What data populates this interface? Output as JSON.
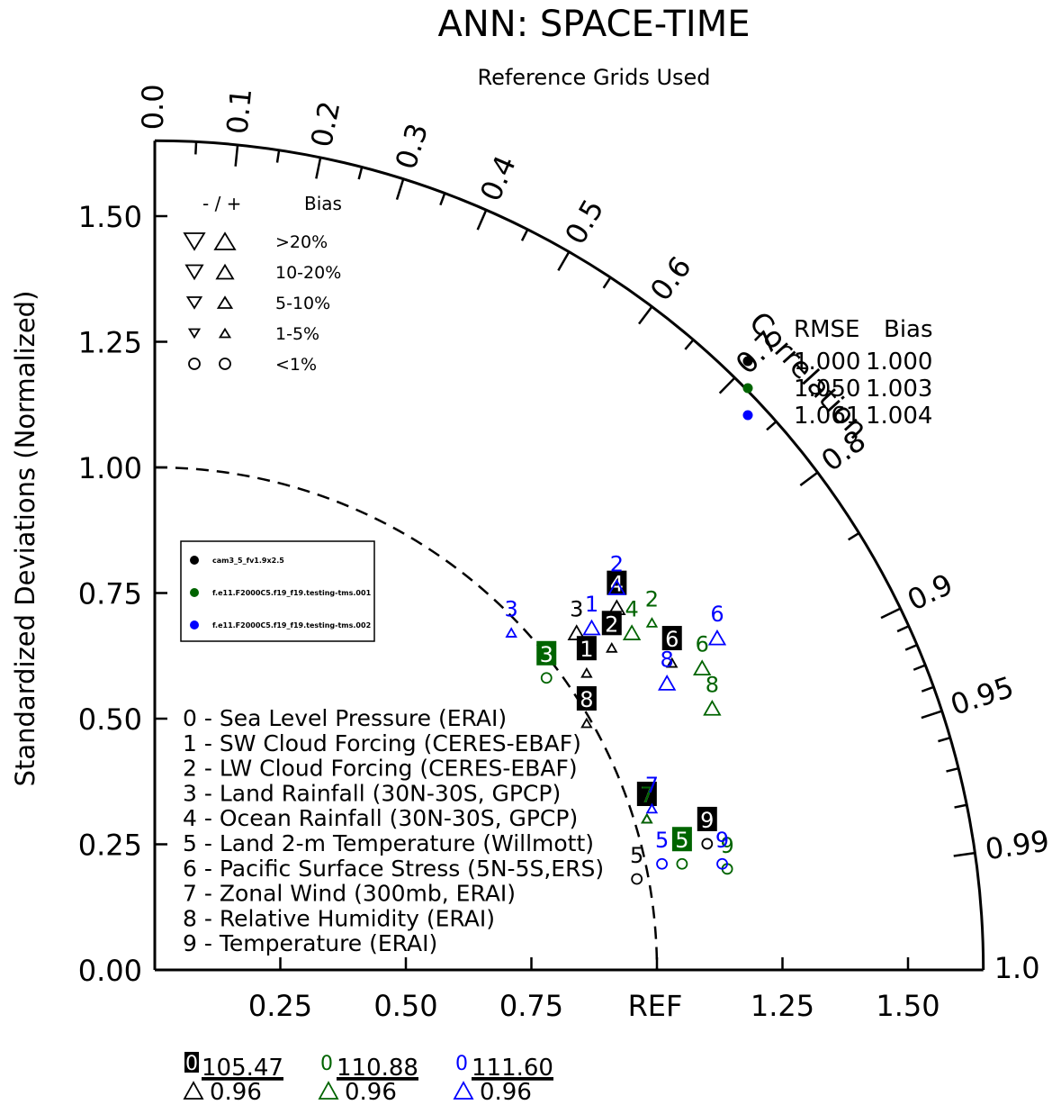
{
  "chart_data": {
    "type": "scatter",
    "title": "ANN: SPACE-TIME",
    "subtitle": "Reference Grids Used",
    "ylabel": "Standardized Deviations (Normalized)",
    "arc_label": "Correlation",
    "ref_label": "REF",
    "rmax": 1.65,
    "x_ticks": [
      "0.25",
      "0.50",
      "0.75",
      "1.25",
      "1.50"
    ],
    "y_ticks": [
      "0.00",
      "0.25",
      "0.50",
      "0.75",
      "1.00",
      "1.25",
      "1.50"
    ],
    "corr_labels": [
      "0.0",
      "0.1",
      "0.2",
      "0.3",
      "0.4",
      "0.5",
      "0.6",
      "0.7",
      "0.8",
      "0.9",
      "0.95",
      "0.99",
      "1.0"
    ],
    "colors": {
      "case1": "#000000",
      "case2": "#006400",
      "case3": "#0000ff"
    },
    "series": [
      {
        "name": "cam3_5_fv1.9x2.5",
        "color": "#000000",
        "rmse": "1.000",
        "bias": "1.000",
        "points": [
          {
            "id": "1",
            "x": 0.86,
            "y": 0.6,
            "style": "box",
            "marker": "tri-up-s"
          },
          {
            "id": "2",
            "x": 0.91,
            "y": 0.65,
            "style": "box",
            "marker": "tri-up-s"
          },
          {
            "id": "3",
            "x": 0.84,
            "y": 0.68,
            "style": "plain",
            "marker": "tri-up"
          },
          {
            "id": "4",
            "x": 0.92,
            "y": 0.73,
            "style": "box",
            "marker": "tri-up"
          },
          {
            "id": "5",
            "x": 0.96,
            "y": 0.19,
            "style": "plain",
            "marker": "circle"
          },
          {
            "id": "6",
            "x": 1.03,
            "y": 0.62,
            "style": "box",
            "marker": "tri-up-s"
          },
          {
            "id": "7",
            "x": 0.98,
            "y": 0.31,
            "style": "box",
            "marker": "tri-up-s"
          },
          {
            "id": "8",
            "x": 0.86,
            "y": 0.5,
            "style": "box",
            "marker": "tri-up-s"
          },
          {
            "id": "9",
            "x": 1.1,
            "y": 0.26,
            "style": "box",
            "marker": "circle"
          }
        ]
      },
      {
        "name": "f.e11.F2000C5.f19_f19.testing-tms.001",
        "color": "#006400",
        "rmse": "1.050",
        "bias": "1.003",
        "points": [
          {
            "id": "2",
            "x": 0.99,
            "y": 0.7,
            "style": "plain",
            "marker": "tri-up-s"
          },
          {
            "id": "3",
            "x": 0.78,
            "y": 0.59,
            "style": "box",
            "marker": "circle"
          },
          {
            "id": "4",
            "x": 0.95,
            "y": 0.68,
            "style": "plain",
            "marker": "tri-up"
          },
          {
            "id": "5",
            "x": 1.05,
            "y": 0.22,
            "style": "box",
            "marker": "circle"
          },
          {
            "id": "6",
            "x": 1.09,
            "y": 0.61,
            "style": "plain",
            "marker": "tri-up"
          },
          {
            "id": "7",
            "x": 0.98,
            "y": 0.31,
            "style": "plain",
            "marker": "tri-up-s"
          },
          {
            "id": "8",
            "x": 1.11,
            "y": 0.53,
            "style": "plain",
            "marker": "tri-up"
          },
          {
            "id": "9",
            "x": 1.14,
            "y": 0.21,
            "style": "plain",
            "marker": "circle"
          }
        ]
      },
      {
        "name": "f.e11.F2000C5.f19_f19.testing-tms.002",
        "color": "#0000ff",
        "rmse": "1.061",
        "bias": "1.004",
        "points": [
          {
            "id": "1",
            "x": 0.87,
            "y": 0.69,
            "style": "plain",
            "marker": "tri-up"
          },
          {
            "id": "2",
            "x": 0.92,
            "y": 0.77,
            "style": "plain",
            "marker": "tri-up"
          },
          {
            "id": "3",
            "x": 0.71,
            "y": 0.68,
            "style": "plain",
            "marker": "tri-up-s"
          },
          {
            "id": "5",
            "x": 1.01,
            "y": 0.22,
            "style": "plain",
            "marker": "circle"
          },
          {
            "id": "6",
            "x": 1.12,
            "y": 0.67,
            "style": "plain",
            "marker": "tri-up"
          },
          {
            "id": "7",
            "x": 0.99,
            "y": 0.33,
            "style": "plain",
            "marker": "tri-up-s"
          },
          {
            "id": "8",
            "x": 1.02,
            "y": 0.58,
            "style": "plain",
            "marker": "tri-up"
          },
          {
            "id": "9",
            "x": 1.13,
            "y": 0.22,
            "style": "plain",
            "marker": "circle"
          }
        ]
      }
    ],
    "variables": [
      "0 - Sea Level Pressure (ERAI)",
      "1 - SW Cloud Forcing (CERES-EBAF)",
      "2 - LW Cloud Forcing (CERES-EBAF)",
      "3 - Land Rainfall (30N-30S, GPCP)",
      "4 - Ocean Rainfall (30N-30S, GPCP)",
      "5 - Land 2-m Temperature (Willmott)",
      "6 - Pacific Surface Stress (5N-5S,ERS)",
      "7 - Zonal Wind (300mb, ERAI)",
      "8 - Relative Humidity (ERAI)",
      "9 - Temperature (ERAI)"
    ],
    "bias_legend": {
      "header_sign": "- / +",
      "header_label": "Bias",
      "rows": [
        ">20%",
        "10-20%",
        "5-10%",
        "1-5%",
        "<1%"
      ]
    },
    "rmse_header": {
      "rmse": "RMSE",
      "bias": "Bias"
    },
    "offscale": [
      {
        "id": "0",
        "value": "105.47",
        "corr": "0.96",
        "color": "#000000"
      },
      {
        "id": "0",
        "value": "110.88",
        "corr": "0.96",
        "color": "#006400"
      },
      {
        "id": "0",
        "value": "111.60",
        "corr": "0.96",
        "color": "#0000ff"
      }
    ]
  }
}
